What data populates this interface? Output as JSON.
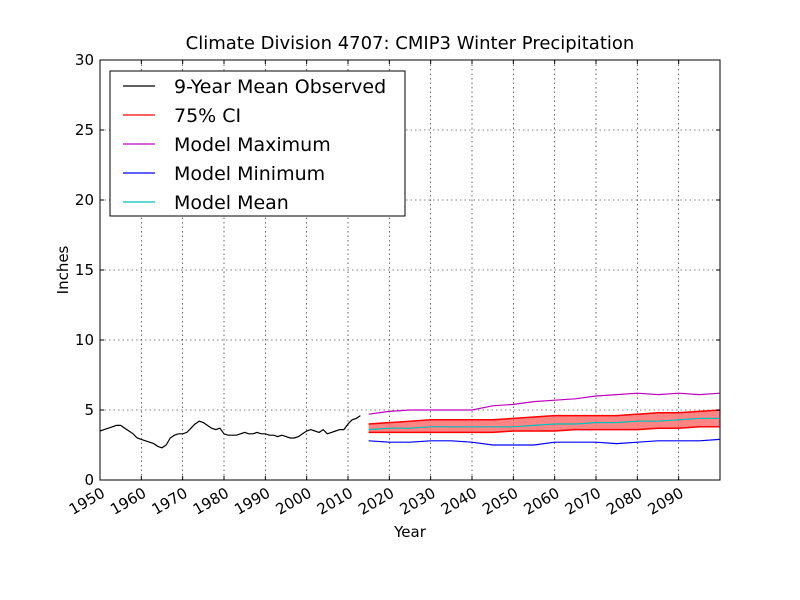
{
  "chart_data": {
    "type": "line",
    "title": "Climate Division 4707: CMIP3 Winter Precipitation",
    "xlabel": "Year",
    "ylabel": "Inches",
    "xlim": [
      1950,
      2100
    ],
    "ylim": [
      0,
      30
    ],
    "xticks": [
      "1950",
      "1960",
      "1970",
      "1980",
      "1990",
      "2000",
      "2010",
      "2020",
      "2030",
      "2040",
      "2050",
      "2060",
      "2070",
      "2080",
      "2090"
    ],
    "yticks": [
      "0",
      "5",
      "10",
      "15",
      "20",
      "25",
      "30"
    ],
    "grid": true,
    "legend_position": "top-left",
    "legend": [
      {
        "label": "9-Year Mean Observed",
        "color": "#000000"
      },
      {
        "label": "75% CI",
        "color": "#ff0000"
      },
      {
        "label": "Model Maximum",
        "color": "#bf00bf"
      },
      {
        "label": "Model Minimum",
        "color": "#0000ff"
      },
      {
        "label": "Model Mean",
        "color": "#00bfbf"
      }
    ],
    "series": [
      {
        "name": "9-Year Mean Observed",
        "color": "#000000",
        "x": [
          1950,
          1951,
          1952,
          1953,
          1954,
          1955,
          1956,
          1957,
          1958,
          1959,
          1960,
          1961,
          1962,
          1963,
          1964,
          1965,
          1966,
          1967,
          1968,
          1969,
          1970,
          1971,
          1972,
          1973,
          1974,
          1975,
          1976,
          1977,
          1978,
          1979,
          1980,
          1981,
          1982,
          1983,
          1984,
          1985,
          1986,
          1987,
          1988,
          1989,
          1990,
          1991,
          1992,
          1993,
          1994,
          1995,
          1996,
          1997,
          1998,
          1999,
          2000,
          2001,
          2002,
          2003,
          2004,
          2005,
          2006,
          2007,
          2008,
          2009,
          2010,
          2011,
          2012,
          2013
        ],
        "y": [
          3.5,
          3.6,
          3.7,
          3.8,
          3.9,
          3.9,
          3.7,
          3.5,
          3.3,
          3.0,
          2.9,
          2.8,
          2.7,
          2.6,
          2.4,
          2.3,
          2.5,
          3.0,
          3.2,
          3.3,
          3.3,
          3.4,
          3.7,
          4.0,
          4.2,
          4.1,
          3.9,
          3.7,
          3.6,
          3.7,
          3.3,
          3.2,
          3.2,
          3.2,
          3.3,
          3.4,
          3.3,
          3.3,
          3.4,
          3.3,
          3.3,
          3.2,
          3.2,
          3.1,
          3.2,
          3.1,
          3.0,
          3.0,
          3.1,
          3.3,
          3.5,
          3.6,
          3.5,
          3.4,
          3.6,
          3.3,
          3.4,
          3.5,
          3.6,
          3.6,
          4.0,
          4.3,
          4.4,
          4.6
        ]
      },
      {
        "name": "Model Maximum",
        "color": "#bf00bf",
        "x": [
          2015,
          2020,
          2025,
          2030,
          2035,
          2040,
          2045,
          2050,
          2055,
          2060,
          2065,
          2070,
          2075,
          2080,
          2085,
          2090,
          2095,
          2100
        ],
        "y": [
          4.7,
          4.9,
          5.0,
          5.0,
          5.0,
          5.0,
          5.3,
          5.4,
          5.6,
          5.7,
          5.8,
          6.0,
          6.1,
          6.2,
          6.1,
          6.2,
          6.1,
          6.2
        ]
      },
      {
        "name": "Model Minimum",
        "color": "#0000ff",
        "x": [
          2015,
          2020,
          2025,
          2030,
          2035,
          2040,
          2045,
          2050,
          2055,
          2060,
          2065,
          2070,
          2075,
          2080,
          2085,
          2090,
          2095,
          2100
        ],
        "y": [
          2.8,
          2.7,
          2.7,
          2.8,
          2.8,
          2.7,
          2.5,
          2.5,
          2.5,
          2.7,
          2.7,
          2.7,
          2.6,
          2.7,
          2.8,
          2.8,
          2.8,
          2.9
        ]
      },
      {
        "name": "Model Mean",
        "color": "#00bfbf",
        "x": [
          2015,
          2020,
          2025,
          2030,
          2035,
          2040,
          2045,
          2050,
          2055,
          2060,
          2065,
          2070,
          2075,
          2080,
          2085,
          2090,
          2095,
          2100
        ],
        "y": [
          3.6,
          3.7,
          3.7,
          3.8,
          3.8,
          3.8,
          3.8,
          3.8,
          3.9,
          4.0,
          4.0,
          4.1,
          4.1,
          4.2,
          4.2,
          4.3,
          4.4,
          4.4
        ]
      }
    ],
    "ci_band": {
      "name": "75% CI",
      "color": "#ff0000",
      "x": [
        2015,
        2020,
        2025,
        2030,
        2035,
        2040,
        2045,
        2050,
        2055,
        2060,
        2065,
        2070,
        2075,
        2080,
        2085,
        2090,
        2095,
        2100
      ],
      "upper": [
        4.0,
        4.1,
        4.2,
        4.3,
        4.3,
        4.3,
        4.3,
        4.4,
        4.5,
        4.6,
        4.6,
        4.6,
        4.6,
        4.7,
        4.8,
        4.8,
        4.9,
        5.0
      ],
      "lower": [
        3.4,
        3.4,
        3.4,
        3.4,
        3.4,
        3.4,
        3.4,
        3.5,
        3.5,
        3.5,
        3.6,
        3.6,
        3.6,
        3.6,
        3.7,
        3.7,
        3.8,
        3.8
      ]
    }
  }
}
